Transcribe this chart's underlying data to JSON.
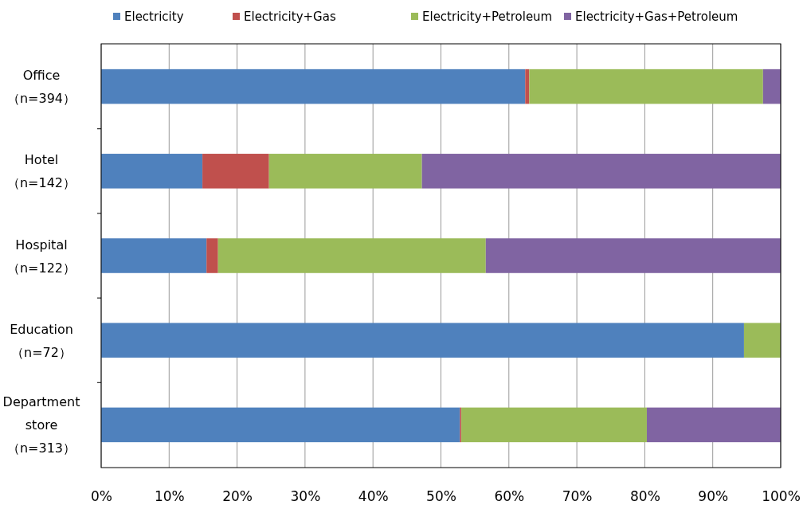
{
  "chart_data": {
    "type": "bar",
    "orientation": "horizontal",
    "stacked": true,
    "categories": [
      "Office\n（n=394）",
      "Hotel\n（n=142）",
      "Hospital\n（n=122）",
      "Education\n（n=72）",
      "Department\nstore\n（n=313）"
    ],
    "series": [
      {
        "name": "Electricity",
        "color": "#4f81bd",
        "values": [
          62.4,
          14.9,
          15.5,
          94.6,
          52.8
        ]
      },
      {
        "name": "Electricity+Gas",
        "color": "#c0504d",
        "values": [
          0.6,
          9.8,
          1.7,
          0,
          0.2
        ]
      },
      {
        "name": "Electricity+Petroleum",
        "color": "#9bbb59",
        "values": [
          34.4,
          22.5,
          39.4,
          5.4,
          27.3
        ]
      },
      {
        "name": "Electricity+Gas+Petroleum",
        "color": "#8064a2",
        "values": [
          2.6,
          52.8,
          43.4,
          0,
          19.7
        ]
      }
    ],
    "xlim": [
      0,
      100
    ],
    "xticks": [
      {
        "value": 0,
        "label": "0%"
      },
      {
        "value": 10,
        "label": "10%"
      },
      {
        "value": 20,
        "label": "20%"
      },
      {
        "value": 30,
        "label": "30%"
      },
      {
        "value": 40,
        "label": "40%"
      },
      {
        "value": 50,
        "label": "50%"
      },
      {
        "value": 60,
        "label": "60%"
      },
      {
        "value": 70,
        "label": "70%"
      },
      {
        "value": 80,
        "label": "80%"
      },
      {
        "value": 90,
        "label": "90%"
      },
      {
        "value": 100,
        "label": "100%"
      }
    ],
    "grid": "x",
    "legend": "top"
  }
}
